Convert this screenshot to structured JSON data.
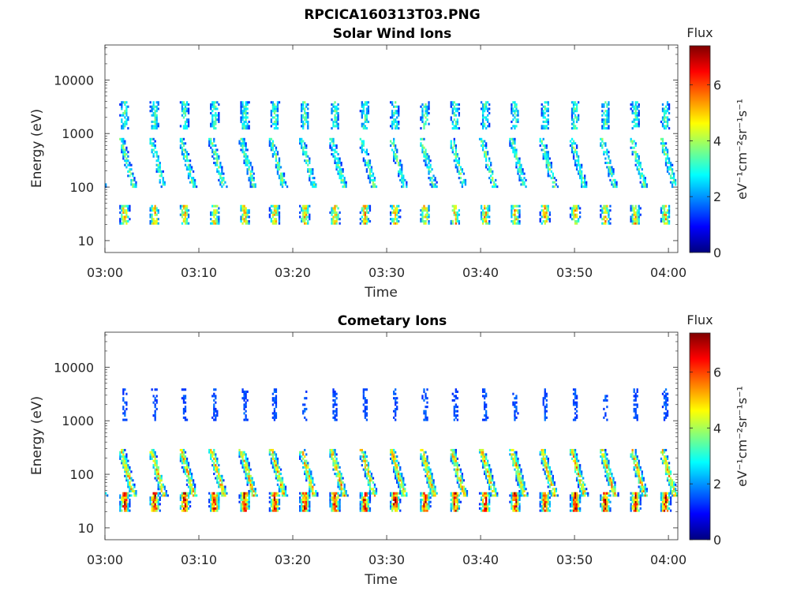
{
  "figure": {
    "title": "RPCICA160313T03.PNG"
  },
  "colorbar_colors": [
    "#00007f",
    "#0000ff",
    "#007fff",
    "#00ffff",
    "#7fff7f",
    "#ffff00",
    "#ff7f00",
    "#ff0000",
    "#7f0000"
  ],
  "chart_data": [
    {
      "type": "heatmap",
      "title": "Solar Wind Ions",
      "xlabel": "Time",
      "ylabel": "Energy (eV)",
      "yscale": "log",
      "xlim": [
        "03:00",
        "04:01"
      ],
      "ylim": [
        6,
        45000
      ],
      "x_ticks": [
        "03:00",
        "03:10",
        "03:20",
        "03:30",
        "03:40",
        "03:50",
        "04:00"
      ],
      "y_ticks": [
        "10",
        "100",
        "1000",
        "10000"
      ],
      "colorbar": {
        "label_top": "Flux",
        "label": "eV⁻¹cm⁻²sr⁻¹s⁻¹",
        "range": [
          0,
          7.4
        ],
        "ticks": [
          "0",
          "2",
          "4",
          "6"
        ]
      },
      "pattern": {
        "period_minutes": 3.2,
        "first_sweep_minute": 1.4,
        "bands": [
          {
            "name": "solar-wind-peak",
            "energy_range_eV": [
              1200,
              4000
            ],
            "log_flux": 3.2
          },
          {
            "name": "dispersed-tail",
            "energy_range_eV": [
              100,
              800
            ],
            "log_flux": 3.4
          },
          {
            "name": "low-energy",
            "energy_range_eV": [
              20,
              45
            ],
            "log_flux": 4.8
          }
        ]
      }
    },
    {
      "type": "heatmap",
      "title": "Cometary Ions",
      "xlabel": "Time",
      "ylabel": "Energy (eV)",
      "yscale": "log",
      "xlim": [
        "03:00",
        "04:01"
      ],
      "ylim": [
        6,
        45000
      ],
      "x_ticks": [
        "03:00",
        "03:10",
        "03:20",
        "03:30",
        "03:40",
        "03:50",
        "04:00"
      ],
      "y_ticks": [
        "10",
        "100",
        "1000",
        "10000"
      ],
      "colorbar": {
        "label_top": "Flux",
        "label": "eV⁻¹cm⁻²sr⁻¹s⁻¹",
        "range": [
          0,
          7.4
        ],
        "ticks": [
          "0",
          "2",
          "4",
          "6"
        ]
      },
      "pattern": {
        "period_minutes": 3.2,
        "first_sweep_minute": 1.4,
        "bands": [
          {
            "name": "high-energy-sparse",
            "energy_range_eV": [
              1000,
              4000
            ],
            "log_flux": 1.5
          },
          {
            "name": "dispersed-main",
            "energy_range_eV": [
              40,
              300
            ],
            "log_flux": 4.8
          },
          {
            "name": "low-energy-peak",
            "energy_range_eV": [
              20,
              45
            ],
            "log_flux": 6.2
          }
        ]
      }
    }
  ]
}
